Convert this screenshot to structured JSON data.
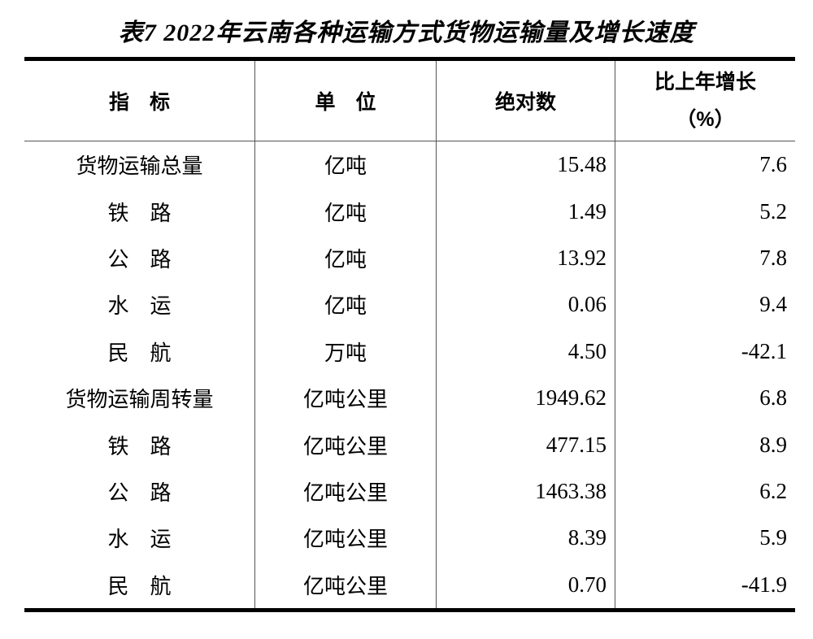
{
  "title": "表7 2022年云南各种运输方式货物运输量及增长速度",
  "table": {
    "headers": {
      "indicator": "指　标",
      "unit": "单　位",
      "absolute": "绝对数",
      "growth_line1": "比上年增长",
      "growth_line2": "（%）"
    },
    "rows": [
      {
        "indicator": "货物运输总量",
        "unit": "亿吨",
        "absolute": "15.48",
        "growth": "7.6"
      },
      {
        "indicator": "铁　路",
        "unit": "亿吨",
        "absolute": "1.49",
        "growth": "5.2"
      },
      {
        "indicator": "公　路",
        "unit": "亿吨",
        "absolute": "13.92",
        "growth": "7.8"
      },
      {
        "indicator": "水　运",
        "unit": "亿吨",
        "absolute": "0.06",
        "growth": "9.4"
      },
      {
        "indicator": "民　航",
        "unit": "万吨",
        "absolute": "4.50",
        "growth": "-42.1"
      },
      {
        "indicator": "货物运输周转量",
        "unit": "亿吨公里",
        "absolute": "1949.62",
        "growth": "6.8"
      },
      {
        "indicator": "铁　路",
        "unit": "亿吨公里",
        "absolute": "477.15",
        "growth": "8.9"
      },
      {
        "indicator": "公　路",
        "unit": "亿吨公里",
        "absolute": "1463.38",
        "growth": "6.2"
      },
      {
        "indicator": "水　运",
        "unit": "亿吨公里",
        "absolute": "8.39",
        "growth": "5.9"
      },
      {
        "indicator": "民　航",
        "unit": "亿吨公里",
        "absolute": "0.70",
        "growth": "-41.9"
      }
    ]
  },
  "colors": {
    "background": "#ffffff",
    "text": "#000000",
    "thick_rule": "#000000",
    "thin_rule": "#555555"
  },
  "chart_data": {
    "type": "table",
    "title": "表7 2022年云南各种运输方式货物运输量及增长速度",
    "columns": [
      "指标",
      "单位",
      "绝对数",
      "比上年增长（%）"
    ],
    "rows": [
      [
        "货物运输总量",
        "亿吨",
        15.48,
        7.6
      ],
      [
        "铁路",
        "亿吨",
        1.49,
        5.2
      ],
      [
        "公路",
        "亿吨",
        13.92,
        7.8
      ],
      [
        "水运",
        "亿吨",
        0.06,
        9.4
      ],
      [
        "民航",
        "万吨",
        4.5,
        -42.1
      ],
      [
        "货物运输周转量",
        "亿吨公里",
        1949.62,
        6.8
      ],
      [
        "铁路",
        "亿吨公里",
        477.15,
        8.9
      ],
      [
        "公路",
        "亿吨公里",
        1463.38,
        6.2
      ],
      [
        "水运",
        "亿吨公里",
        8.39,
        5.9
      ],
      [
        "民航",
        "亿吨公里",
        0.7,
        -41.9
      ]
    ]
  }
}
